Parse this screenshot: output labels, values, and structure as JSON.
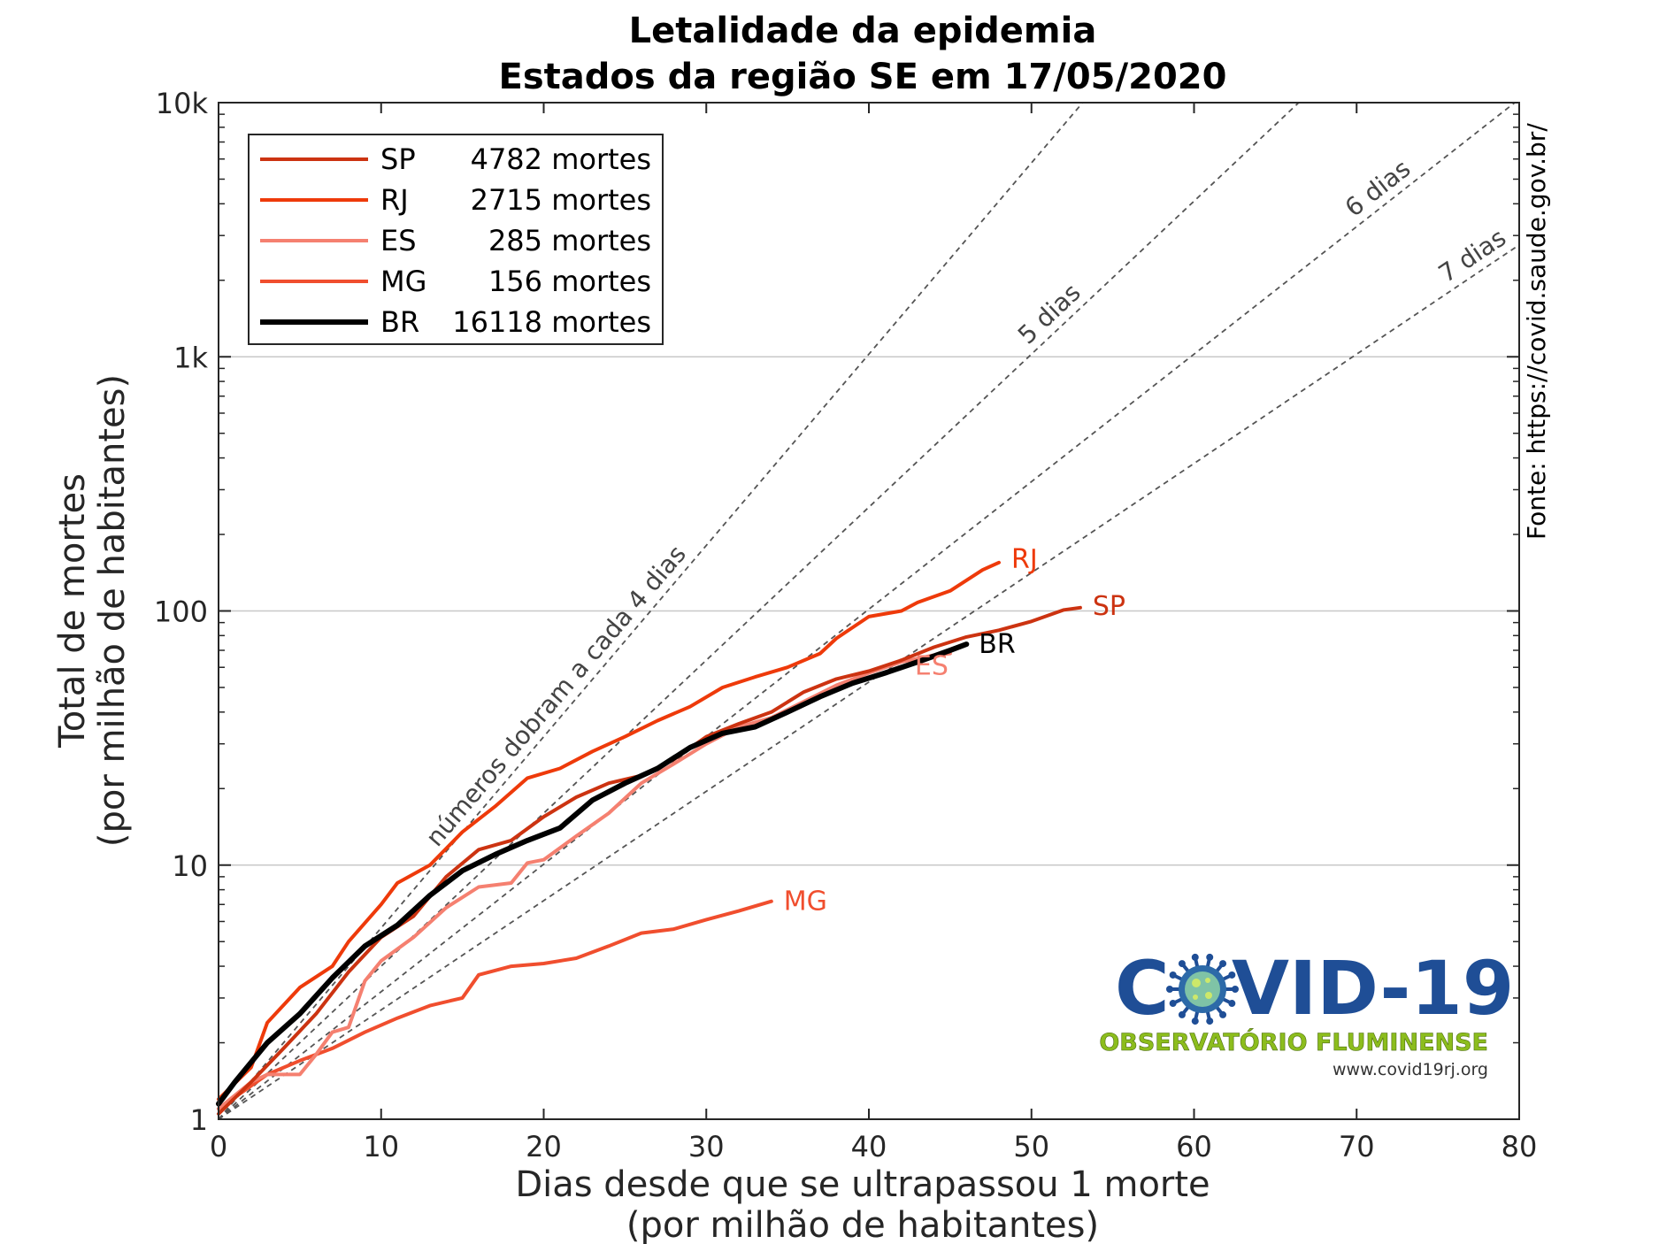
{
  "chart_data": {
    "type": "line",
    "title": "Letalidade da epidemia",
    "subtitle": "Estados da região SE em 17/05/2020",
    "xlabel": "Dias desde que se ultrapassou 1 morte",
    "xlabel2": "(por milhão de habitantes)",
    "ylabel": "Total de mortes",
    "ylabel2": "(por milhão de habitantes)",
    "xlim": [
      0,
      80
    ],
    "ylim": [
      1,
      10000
    ],
    "yscale": "log",
    "grid": "horizontal",
    "legend_position": "top-left",
    "x_ticks": [
      0,
      10,
      20,
      30,
      40,
      50,
      60,
      70,
      80
    ],
    "x_tick_labels": [
      "0",
      "10",
      "20",
      "30",
      "40",
      "50",
      "60",
      "70",
      "80"
    ],
    "y_ticks": [
      1,
      10,
      100,
      1000,
      10000
    ],
    "y_tick_labels": [
      "1",
      "10",
      "100",
      "1k",
      "10k"
    ],
    "source": "Fonte: https://covid.saude.gov.br/",
    "reference_lines": [
      {
        "doubling_days": 4,
        "label": "números dobram a cada 4 dias"
      },
      {
        "doubling_days": 5,
        "label": "5 dias"
      },
      {
        "doubling_days": 6,
        "label": "6 dias"
      },
      {
        "doubling_days": 7,
        "label": "7 dias"
      }
    ],
    "series": [
      {
        "name": "SP",
        "legend": "4782 mortes",
        "color": "#cc3311",
        "end_label": "SP",
        "points": [
          [
            0,
            1.05
          ],
          [
            2,
            1.4
          ],
          [
            4,
            1.9
          ],
          [
            6,
            2.6
          ],
          [
            8,
            3.8
          ],
          [
            10,
            5.2
          ],
          [
            12,
            6.3
          ],
          [
            14,
            9
          ],
          [
            16,
            11.5
          ],
          [
            18,
            12.5
          ],
          [
            20,
            15.5
          ],
          [
            22,
            18.5
          ],
          [
            24,
            21
          ],
          [
            26,
            22.5
          ],
          [
            28,
            26
          ],
          [
            30,
            32
          ],
          [
            32,
            36
          ],
          [
            34,
            40
          ],
          [
            36,
            48
          ],
          [
            38,
            54
          ],
          [
            40,
            58
          ],
          [
            42,
            64
          ],
          [
            44,
            72
          ],
          [
            46,
            79
          ],
          [
            48,
            84
          ],
          [
            50,
            91
          ],
          [
            52,
            101
          ],
          [
            53,
            103
          ]
        ]
      },
      {
        "name": "RJ",
        "legend": "2715 mortes",
        "color": "#ee3a0a",
        "end_label": "RJ",
        "points": [
          [
            0,
            1.2
          ],
          [
            2,
            1.6
          ],
          [
            3,
            2.4
          ],
          [
            5,
            3.3
          ],
          [
            7,
            4
          ],
          [
            8,
            5
          ],
          [
            10,
            7
          ],
          [
            11,
            8.5
          ],
          [
            13,
            10
          ],
          [
            15,
            13.5
          ],
          [
            17,
            17
          ],
          [
            19,
            22
          ],
          [
            21,
            24
          ],
          [
            23,
            28
          ],
          [
            25,
            32
          ],
          [
            27,
            37
          ],
          [
            29,
            42
          ],
          [
            31,
            50
          ],
          [
            33,
            55
          ],
          [
            35,
            60
          ],
          [
            37,
            68
          ],
          [
            38,
            78
          ],
          [
            40,
            95
          ],
          [
            42,
            100
          ],
          [
            43,
            108
          ],
          [
            45,
            120
          ],
          [
            47,
            145
          ],
          [
            48,
            155
          ]
        ]
      },
      {
        "name": "ES",
        "legend": "285 mortes",
        "color": "#f58070",
        "end_label": "ES",
        "points": [
          [
            0,
            1.1
          ],
          [
            2,
            1.4
          ],
          [
            3,
            1.5
          ],
          [
            5,
            1.5
          ],
          [
            6,
            1.8
          ],
          [
            7,
            2.2
          ],
          [
            8,
            2.3
          ],
          [
            9,
            3.5
          ],
          [
            10,
            4.2
          ],
          [
            12,
            5.2
          ],
          [
            14,
            6.8
          ],
          [
            16,
            8.2
          ],
          [
            18,
            8.5
          ],
          [
            19,
            10.2
          ],
          [
            20,
            10.5
          ],
          [
            22,
            13
          ],
          [
            24,
            16
          ],
          [
            26,
            21
          ],
          [
            28,
            25
          ],
          [
            30,
            30
          ],
          [
            32,
            35
          ],
          [
            34,
            38
          ],
          [
            36,
            44
          ],
          [
            38,
            51
          ],
          [
            40,
            57
          ],
          [
            42,
            63
          ],
          [
            44,
            67
          ],
          [
            45,
            68
          ]
        ]
      },
      {
        "name": "MG",
        "legend": "156 mortes",
        "color": "#f04e2e",
        "end_label": "MG",
        "points": [
          [
            0,
            1.1
          ],
          [
            3,
            1.5
          ],
          [
            5,
            1.7
          ],
          [
            7,
            1.9
          ],
          [
            9,
            2.2
          ],
          [
            11,
            2.5
          ],
          [
            13,
            2.8
          ],
          [
            15,
            3
          ],
          [
            16,
            3.7
          ],
          [
            18,
            4
          ],
          [
            20,
            4.1
          ],
          [
            22,
            4.3
          ],
          [
            24,
            4.8
          ],
          [
            26,
            5.4
          ],
          [
            28,
            5.6
          ],
          [
            30,
            6.1
          ],
          [
            32,
            6.6
          ],
          [
            34,
            7.2
          ]
        ]
      },
      {
        "name": "BR",
        "legend": "16118 mortes",
        "color": "#000000",
        "end_label": "BR",
        "points": [
          [
            0,
            1.15
          ],
          [
            1,
            1.4
          ],
          [
            3,
            2
          ],
          [
            5,
            2.6
          ],
          [
            7,
            3.6
          ],
          [
            9,
            4.8
          ],
          [
            11,
            5.8
          ],
          [
            13,
            7.6
          ],
          [
            15,
            9.5
          ],
          [
            17,
            11
          ],
          [
            19,
            12.5
          ],
          [
            21,
            14
          ],
          [
            23,
            18
          ],
          [
            25,
            21
          ],
          [
            27,
            24
          ],
          [
            29,
            29
          ],
          [
            31,
            33
          ],
          [
            33,
            35
          ],
          [
            35,
            40
          ],
          [
            37,
            46
          ],
          [
            39,
            52
          ],
          [
            41,
            57
          ],
          [
            43,
            63
          ],
          [
            45,
            70
          ],
          [
            46,
            74
          ]
        ]
      }
    ]
  },
  "logo": {
    "text_left": "C",
    "text_right": "VID-19",
    "subtitle": "OBSERVATÓRIO FLUMINENSE",
    "url": "www.covid19rj.org"
  }
}
